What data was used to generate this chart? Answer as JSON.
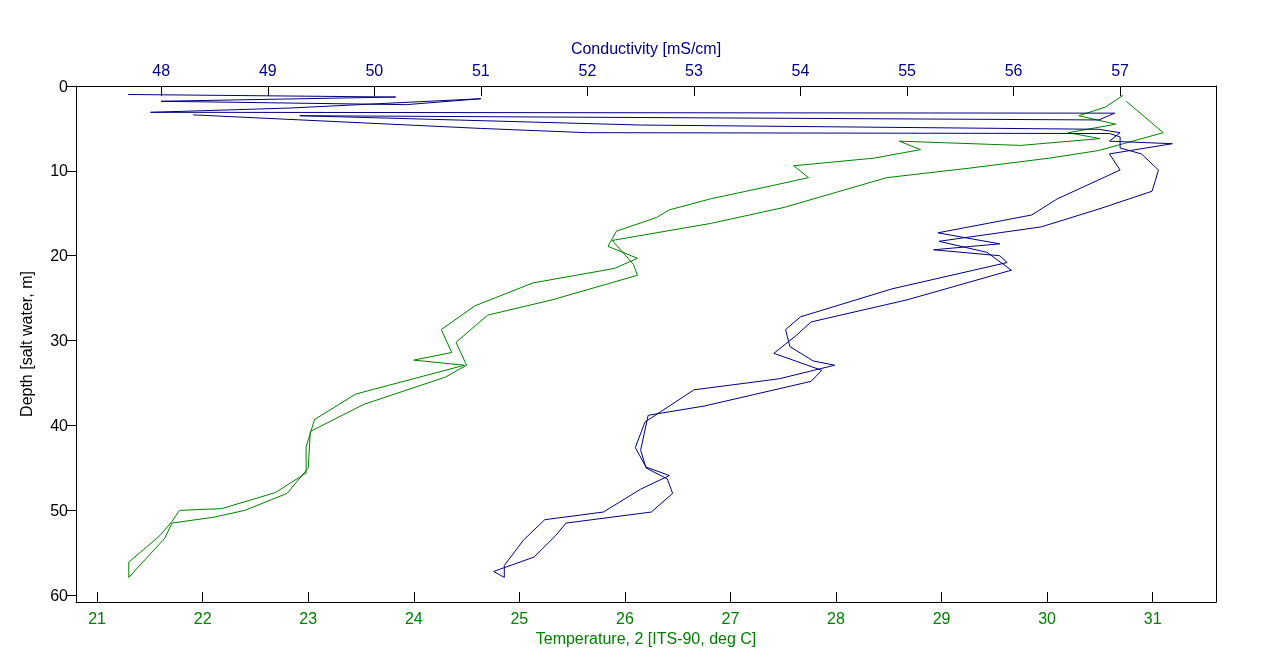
{
  "chart_data": {
    "type": "line",
    "xlabel": "Temperature, 2 [ITS-90, deg C]",
    "x2label": "Conductivity [mS/cm]",
    "ylabel": "Depth [salt water, m]",
    "xlim": [
      20.8,
      31.6
    ],
    "xticks": [
      21,
      22,
      23,
      24,
      25,
      26,
      27,
      28,
      29,
      30,
      31
    ],
    "x2lim": [
      47.2,
      57.9
    ],
    "x2ticks": [
      48,
      49,
      50,
      51,
      52,
      53,
      54,
      55,
      56,
      57
    ],
    "ylim": [
      60.8,
      0
    ],
    "yticks": [
      0,
      10,
      20,
      30,
      40,
      50,
      60
    ],
    "grid": false,
    "series": [
      {
        "color": "#008000",
        "x": [
          30.72,
          30.55,
          30.3,
          30.65,
          30.2,
          30.5,
          29.75,
          28.6,
          28.8,
          28.36,
          27.6,
          27.74,
          27.3,
          26.81,
          26.42,
          26.3,
          25.92,
          25.84,
          26.12,
          25.9,
          25.13,
          24.58,
          24.26,
          24.36,
          24.0,
          24.48,
          23.45,
          23.06,
          22.98,
          22.98,
          22.69,
          22.18,
          21.78,
          21.71,
          21.6,
          21.48,
          21.3,
          21.3,
          21.64,
          21.71,
          22.11,
          22.4,
          22.8,
          23.0,
          23.02,
          23.53,
          24.3,
          24.5,
          24.4,
          24.7,
          25.31,
          26.12,
          26.08,
          25.88,
          26.81,
          27.51,
          28.48,
          29.25,
          30.02,
          30.49,
          31.1,
          30.75
        ],
        "values": [
          1.1,
          2.5,
          3.5,
          4.5,
          5.5,
          6.2,
          7.0,
          6.5,
          7.5,
          8.5,
          9.4,
          10.8,
          12.0,
          13.3,
          14.6,
          15.5,
          17.1,
          18.9,
          20.3,
          21.5,
          23.2,
          25.9,
          28.7,
          31.4,
          32.3,
          32.9,
          36.3,
          39.3,
          42.5,
          45.6,
          47.9,
          49.8,
          50.0,
          51.3,
          52.9,
          54.2,
          56.1,
          57.9,
          53.3,
          51.5,
          50.8,
          50.0,
          48.0,
          45.0,
          40.7,
          37.5,
          34.3,
          32.9,
          30.2,
          27.0,
          25.2,
          22.3,
          21.0,
          18.2,
          16.2,
          14.3,
          10.8,
          9.7,
          8.5,
          7.6,
          5.5,
          1.8
        ]
      },
      {
        "color": "#000080",
        "axis": "x2",
        "x": [
          47.69,
          50.2,
          48.0,
          50.3,
          51.0,
          49.2,
          47.9,
          56.95,
          56.8,
          49.3,
          52.5,
          56.8,
          57.0,
          56.9,
          57.49,
          56.9,
          57.0,
          56.41,
          56.17,
          55.29,
          55.87,
          55.25,
          55.87,
          55.94,
          54.86,
          54.0,
          53.86,
          53.9,
          54.12,
          54.32,
          53.8,
          53.0,
          52.54,
          52.45,
          52.55,
          52.77,
          52.5,
          52.15,
          51.6,
          51.4,
          51.22,
          51.22,
          51.12,
          51.5,
          51.7,
          51.8,
          52.6,
          52.8,
          52.75,
          52.55,
          52.5,
          52.57,
          53.1,
          54.1,
          54.2,
          53.75,
          53.95,
          54.1,
          55.0,
          55.98,
          55.75,
          55.3,
          56.26,
          56.8,
          57.3,
          57.36,
          57.2,
          57.0,
          57.0,
          56.9,
          52.0,
          51.0,
          48.3
        ],
        "values": [
          1.0,
          1.3,
          1.8,
          2.2,
          1.5,
          2.6,
          3.1,
          3.2,
          4.0,
          3.5,
          4.6,
          5.1,
          5.5,
          6.5,
          6.8,
          8.0,
          9.9,
          13.3,
          15.2,
          17.3,
          18.6,
          19.3,
          20.0,
          20.8,
          23.9,
          27.2,
          28.7,
          30.7,
          32.4,
          32.9,
          34.5,
          35.8,
          39.6,
          42.6,
          44.9,
          45.9,
          47.5,
          50.2,
          51.1,
          53.5,
          56.5,
          57.9,
          57.2,
          55.5,
          53.0,
          51.5,
          50.2,
          48.0,
          46.3,
          45.0,
          42.9,
          38.8,
          37.7,
          34.8,
          33.5,
          31.5,
          29.5,
          27.8,
          25.2,
          21.7,
          19.6,
          18.3,
          16.6,
          14.5,
          12.4,
          9.9,
          8.0,
          7.3,
          6.0,
          5.6,
          5.5,
          5.0,
          3.4
        ]
      }
    ]
  }
}
